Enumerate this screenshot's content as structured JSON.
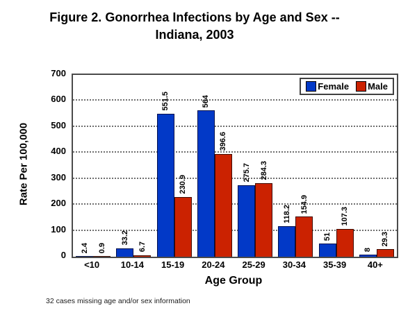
{
  "figure": {
    "title_line1": "Figure 2. Gonorrhea Infections by Age and Sex --",
    "title_line2": "Indiana, 2003",
    "footnote": "32 cases missing age and/or sex information"
  },
  "chart_data": {
    "type": "bar",
    "title": "Figure 2. Gonorrhea Infections by Age and Sex -- Indiana, 2003",
    "xlabel": "Age Group",
    "ylabel": "Rate Per 100,000",
    "categories": [
      "<10",
      "10-14",
      "15-19",
      "20-24",
      "25-29",
      "30-34",
      "35-39",
      "40+"
    ],
    "series": [
      {
        "name": "Female",
        "color": "#0239c7",
        "border_color": "#000f4d",
        "values": [
          2.4,
          33.2,
          551.5,
          564,
          275.7,
          118.2,
          51,
          8
        ]
      },
      {
        "name": "Male",
        "color": "#cb2201",
        "border_color": "#3f0a00",
        "values": [
          0.9,
          6.7,
          230.9,
          396.6,
          284.3,
          154.9,
          107.3,
          29.3
        ]
      }
    ],
    "ylim": [
      0,
      700
    ],
    "ytick_step": 100,
    "grid": "horizontal-dotted",
    "legend_position": "top-right",
    "value_labels": "rotated-90-above-bars"
  }
}
